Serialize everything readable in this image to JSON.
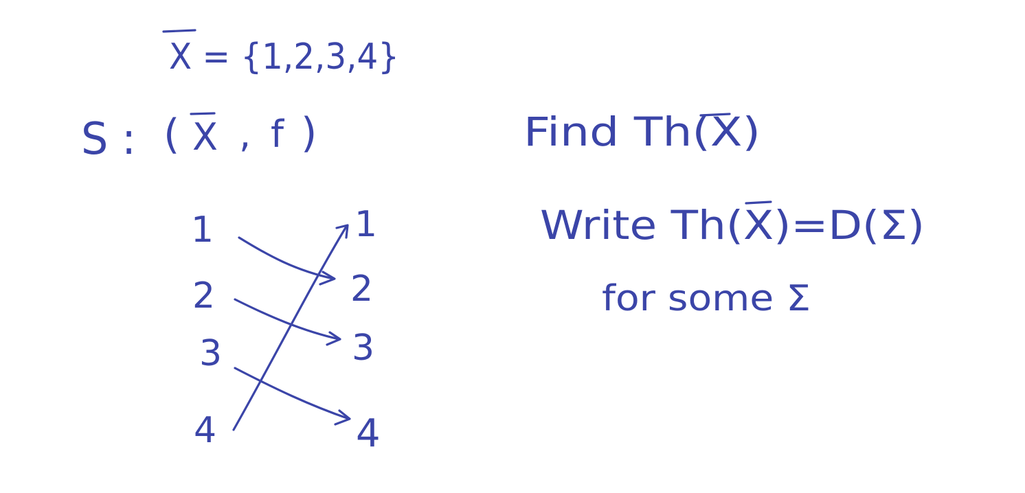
{
  "ink_color": "#3b45a8",
  "background_color": "#ffffff",
  "set_definition": {
    "text": "X = {1,2,3,4}"
  },
  "system": {
    "label": "S :",
    "tuple_open": "(",
    "set_symbol": "X",
    "comma": ",",
    "function_symbol": "f",
    "tuple_close": ")"
  },
  "mapping": {
    "domain_labels": [
      "1",
      "2",
      "3",
      "4"
    ],
    "codomain_labels": [
      "1",
      "2",
      "3",
      "4"
    ],
    "arrows": [
      {
        "from": "1",
        "to": "2"
      },
      {
        "from": "2",
        "to": "3"
      },
      {
        "from": "3",
        "to": "4"
      },
      {
        "from": "4",
        "to": "1"
      }
    ]
  },
  "task": {
    "line1": "Find Th(X)",
    "line2": "Write Th(X)=D(Σ)",
    "line3": "for some Σ"
  }
}
